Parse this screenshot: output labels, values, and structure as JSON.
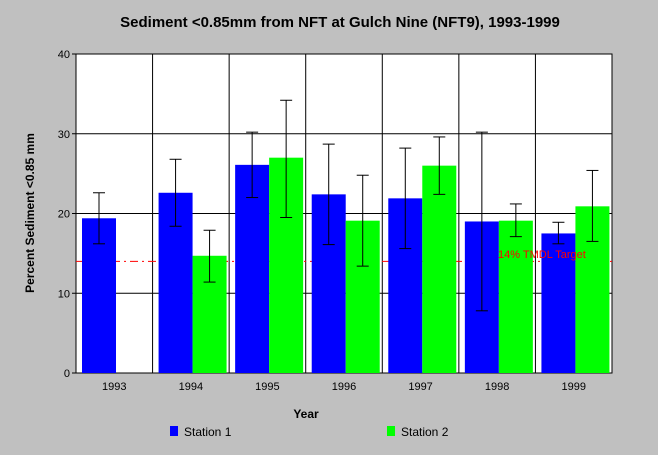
{
  "chart_data": {
    "type": "bar",
    "title": "Sediment <0.85mm from NFT at Gulch Nine (NFT9), 1993-1999",
    "xlabel": "Year",
    "ylabel": "Percent Sediment <0.85 mm",
    "ylim": [
      0,
      40
    ],
    "yticks": [
      "0",
      "10",
      "20",
      "30",
      "40"
    ],
    "categories": [
      "1993",
      "1994",
      "1995",
      "1996",
      "1997",
      "1998",
      "1999"
    ],
    "series": [
      {
        "name": "Station 1",
        "color": "#0000ff",
        "values": [
          19.4,
          22.6,
          26.1,
          22.4,
          21.9,
          19.0,
          17.5
        ],
        "err_low": [
          16.2,
          18.4,
          22.0,
          16.1,
          15.6,
          7.8,
          16.2
        ],
        "err_high": [
          22.6,
          26.8,
          30.2,
          28.7,
          28.2,
          30.2,
          18.9
        ]
      },
      {
        "name": "Station 2",
        "color": "#00ff00",
        "values": [
          null,
          14.7,
          27.0,
          19.1,
          26.0,
          19.1,
          20.9
        ],
        "err_low": [
          null,
          11.4,
          19.5,
          13.4,
          22.4,
          17.1,
          16.5
        ],
        "err_high": [
          null,
          17.9,
          34.2,
          24.8,
          29.6,
          21.2,
          25.4
        ]
      }
    ],
    "target": {
      "value": 14,
      "label": "14% TMDL Target",
      "color": "#ff0000"
    },
    "grid": true,
    "legend_position": "bottom"
  }
}
